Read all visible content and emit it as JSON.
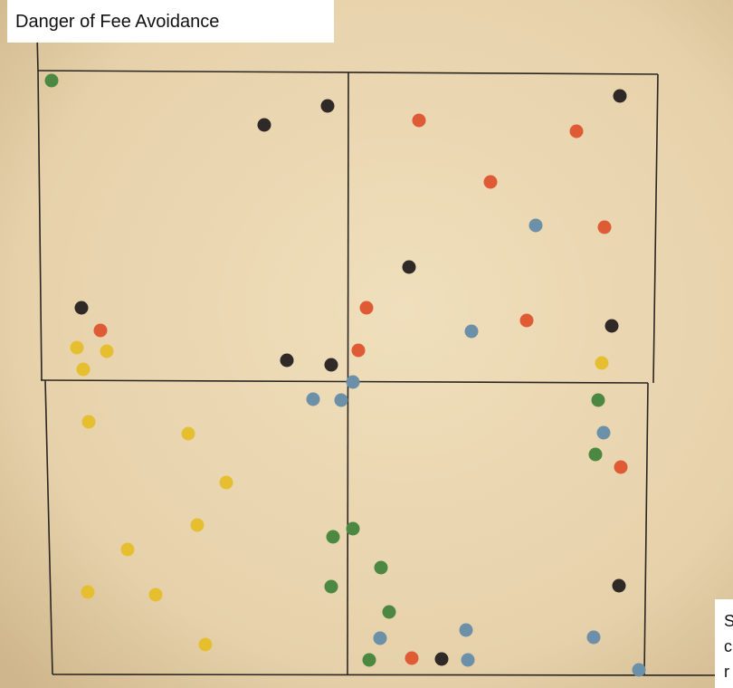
{
  "caption": "Danger of Fee Avoidance",
  "corner_note": [
    "S",
    "c",
    "r"
  ]
}
